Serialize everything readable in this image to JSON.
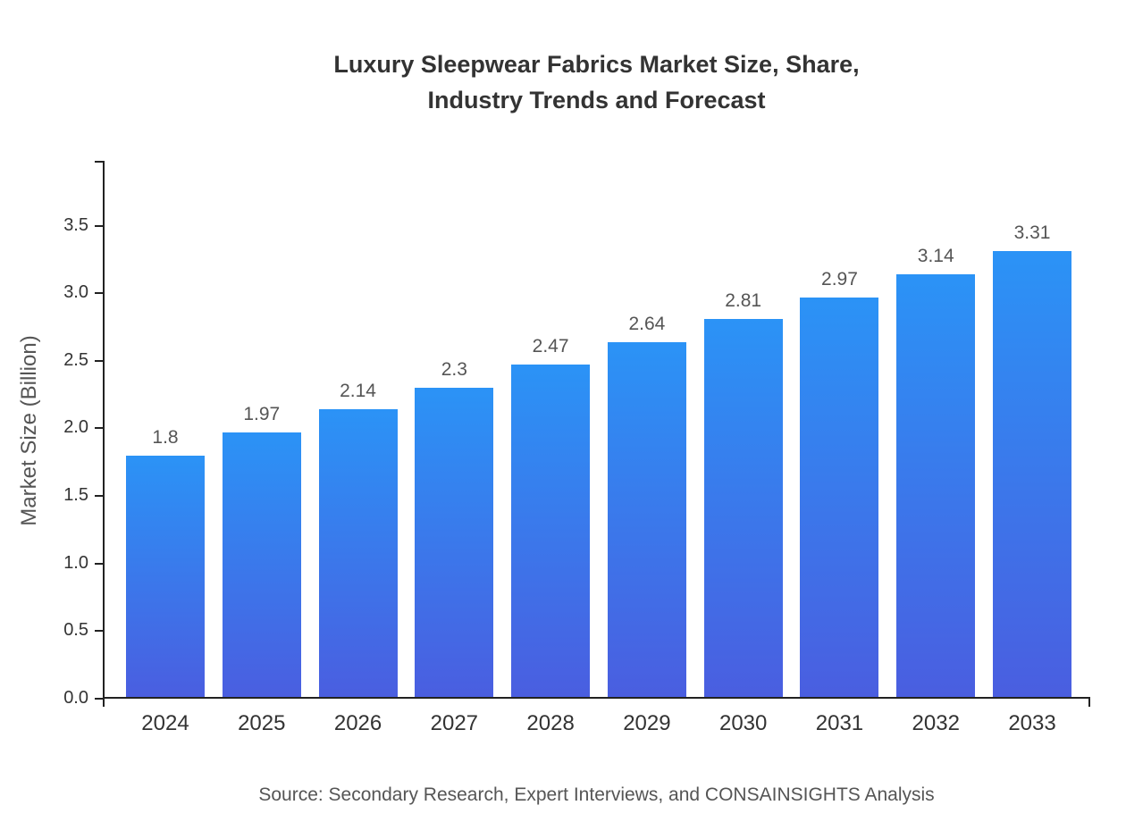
{
  "page": {
    "background_color": "#ffffff"
  },
  "title": {
    "line1": "Luxury Sleepwear Fabrics Market Size, Share,",
    "line2": "Industry Trends and Forecast"
  },
  "source_note": "Source: Secondary Research, Expert Interviews, and CONSAINSIGHTS Analysis",
  "chart_data": {
    "type": "bar",
    "title": "Luxury Sleepwear Fabrics Market Size, Share, Industry Trends and Forecast",
    "categories": [
      "2024",
      "2025",
      "2026",
      "2027",
      "2028",
      "2029",
      "2030",
      "2031",
      "2032",
      "2033"
    ],
    "values": [
      1.8,
      1.97,
      2.14,
      2.3,
      2.47,
      2.64,
      2.81,
      2.97,
      3.14,
      3.31
    ],
    "value_labels": [
      "1.8",
      "1.97",
      "2.14",
      "2.3",
      "2.47",
      "2.64",
      "2.81",
      "2.97",
      "3.14",
      "3.31"
    ],
    "xlabel": "",
    "ylabel": "Market Size (Billion)",
    "ylim": [
      0,
      3.98
    ],
    "yticks": [
      "0.0",
      "0.5",
      "1.0",
      "1.5",
      "2.0",
      "2.5",
      "3.0",
      "3.5"
    ],
    "grid": false,
    "legend_position": "none",
    "bar_color_top": "#2b93f6",
    "bar_color_bottom": "#4a5ee0",
    "axis_color": "#222222",
    "value_label_color": "#555555",
    "tick_label_color": "#333333"
  }
}
